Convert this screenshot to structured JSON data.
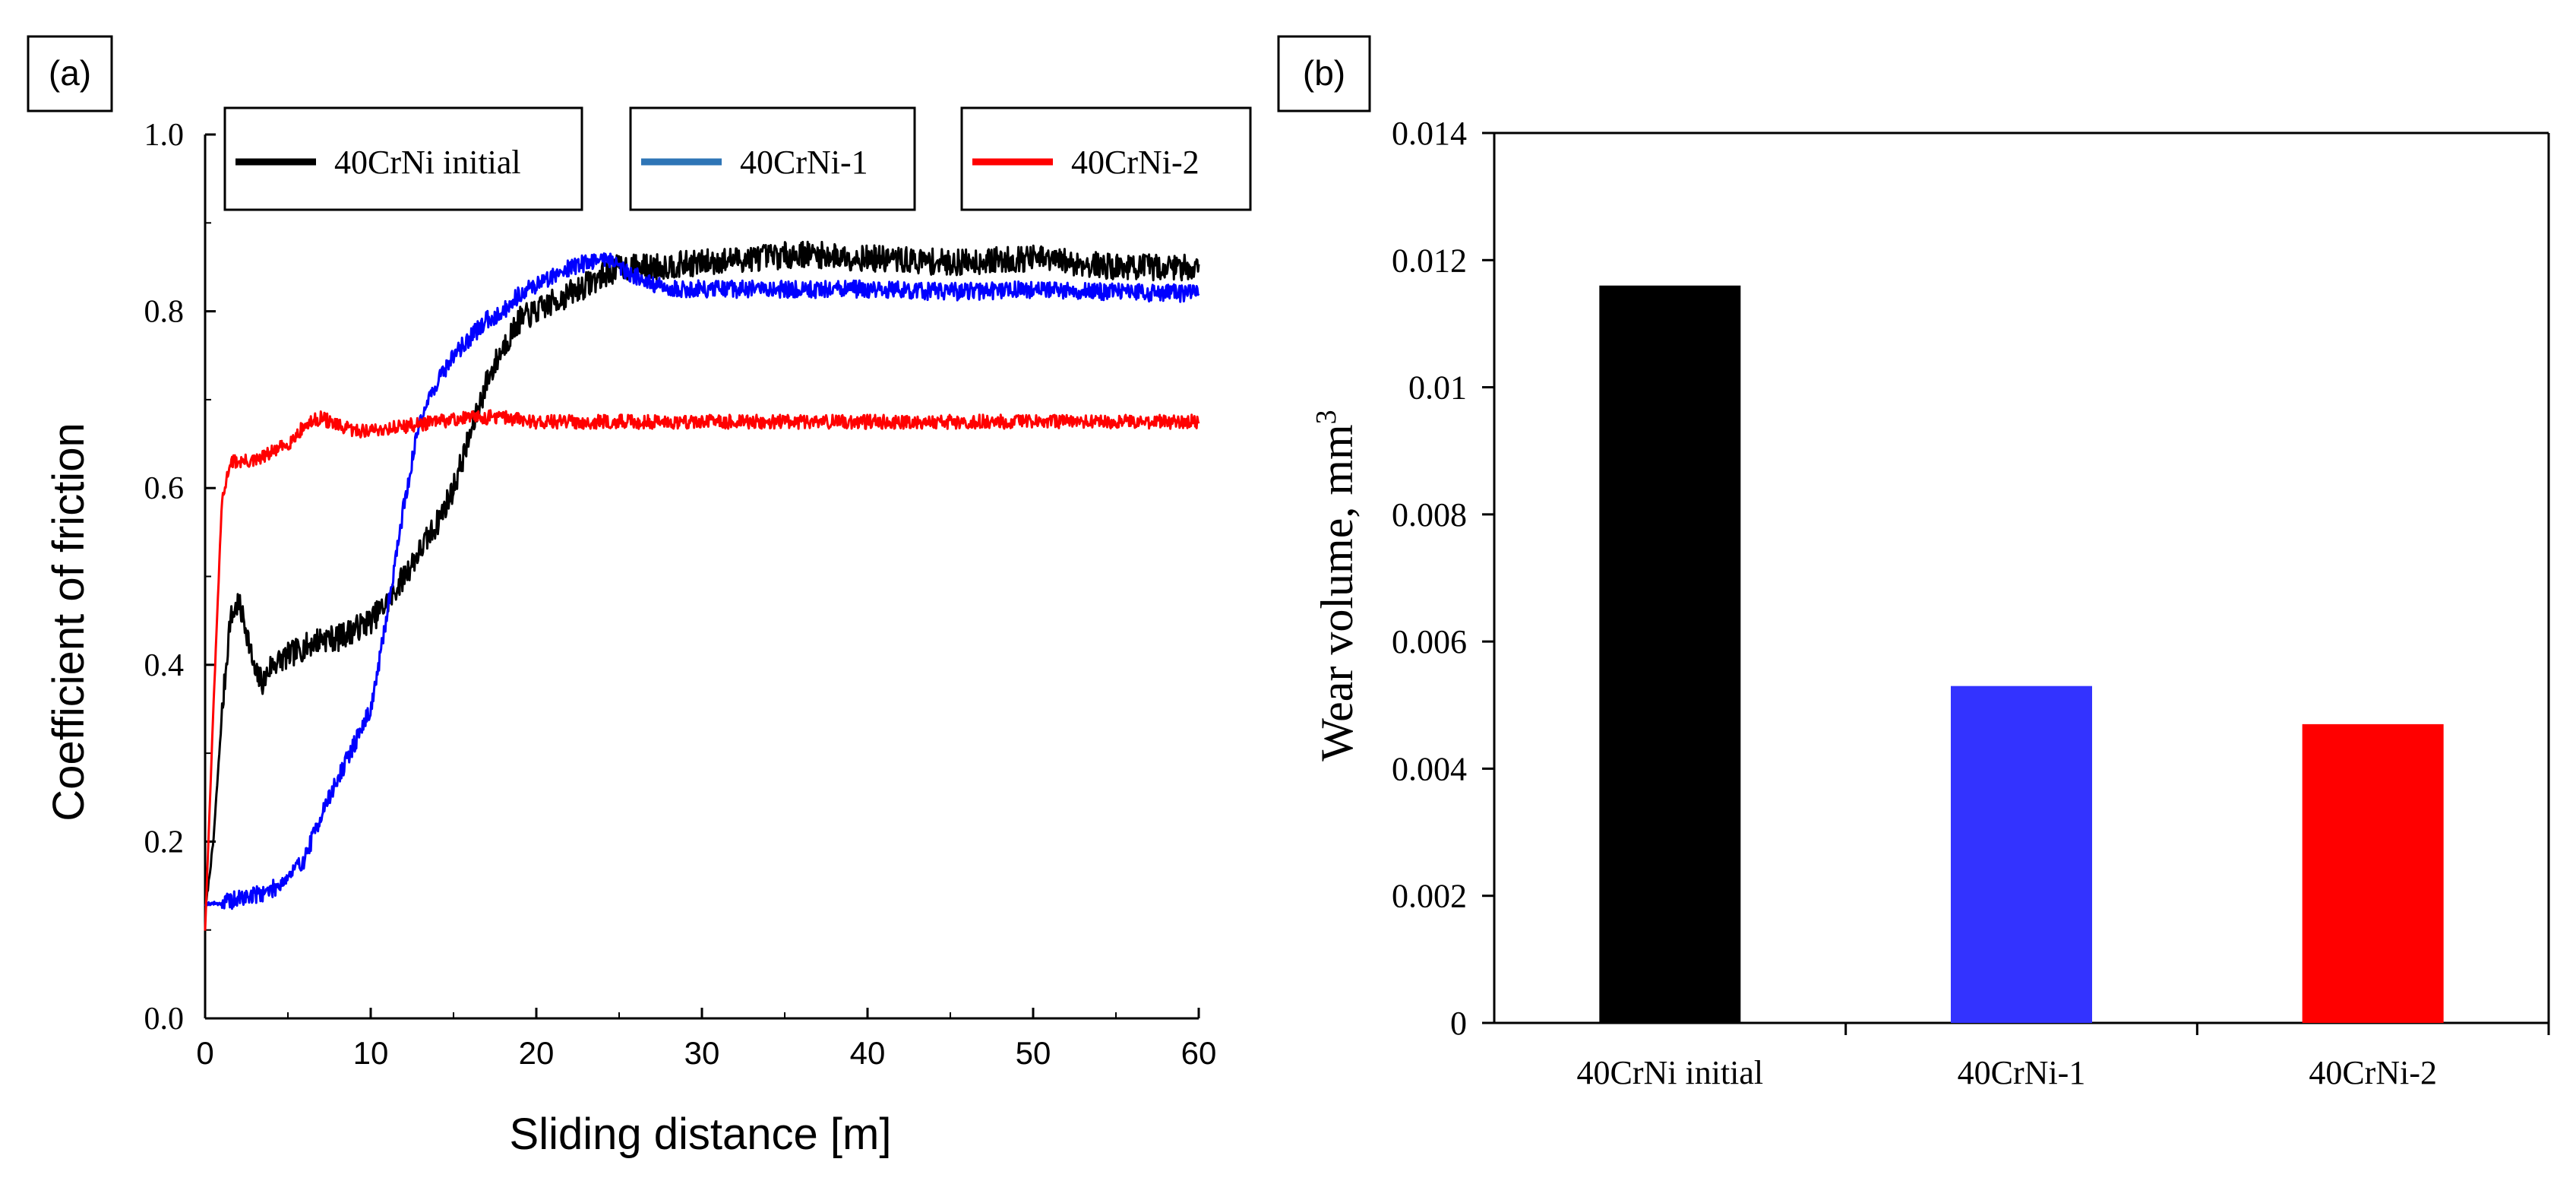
{
  "panels": {
    "a_label": "(a)",
    "b_label": "(b)"
  },
  "chart_data": [
    {
      "type": "line",
      "panel": "(a)",
      "title": "",
      "xlabel": "Sliding distance [m]",
      "ylabel": "Coefficient of friction",
      "xlim": [
        0,
        60
      ],
      "ylim": [
        0,
        1.0
      ],
      "xticks": [
        0,
        10,
        20,
        30,
        40,
        50,
        60
      ],
      "yticks": [
        0.0,
        0.2,
        0.4,
        0.6,
        0.8,
        1.0
      ],
      "ytick_labels": [
        "0.0",
        "0.2",
        "0.4",
        "0.6",
        "0.8",
        "1.0"
      ],
      "legend_position": "top",
      "series": [
        {
          "name": "40CrNi initial",
          "color": "#000000",
          "x": [
            0,
            0.5,
            1,
            1.5,
            2,
            2.5,
            3,
            3.5,
            4,
            5,
            6,
            7,
            8,
            9,
            10,
            11,
            12,
            13,
            14,
            15,
            16,
            17,
            18,
            19,
            20,
            21,
            22,
            23,
            24,
            25,
            27,
            30,
            33,
            36,
            40,
            45,
            50,
            55,
            60
          ],
          "y": [
            0.12,
            0.2,
            0.34,
            0.45,
            0.47,
            0.44,
            0.39,
            0.38,
            0.4,
            0.41,
            0.42,
            0.43,
            0.43,
            0.44,
            0.45,
            0.47,
            0.5,
            0.53,
            0.56,
            0.6,
            0.66,
            0.72,
            0.76,
            0.79,
            0.8,
            0.81,
            0.82,
            0.83,
            0.84,
            0.85,
            0.85,
            0.855,
            0.86,
            0.865,
            0.86,
            0.855,
            0.86,
            0.85,
            0.85
          ],
          "noise": 0.015
        },
        {
          "name": "40CrNi-1",
          "color": "#0000ff",
          "legend_color": "#2e75b6",
          "x": [
            0,
            1,
            2,
            3,
            4,
            5,
            6,
            7,
            8,
            9,
            10,
            10.5,
            11,
            11.5,
            12,
            12.5,
            13,
            14,
            15,
            16,
            17,
            18,
            19,
            20,
            21,
            22,
            23,
            24,
            24.5,
            25,
            26,
            27,
            28,
            30,
            35,
            40,
            45,
            50,
            55,
            60
          ],
          "y": [
            0.13,
            0.13,
            0.135,
            0.14,
            0.145,
            0.16,
            0.18,
            0.23,
            0.27,
            0.31,
            0.35,
            0.4,
            0.46,
            0.52,
            0.58,
            0.63,
            0.68,
            0.72,
            0.75,
            0.77,
            0.79,
            0.8,
            0.82,
            0.83,
            0.84,
            0.85,
            0.855,
            0.86,
            0.86,
            0.85,
            0.84,
            0.83,
            0.825,
            0.825,
            0.825,
            0.825,
            0.822,
            0.825,
            0.822,
            0.82
          ],
          "noise": 0.01
        },
        {
          "name": "40CrNi-2",
          "color": "#ff0000",
          "x": [
            0,
            0.5,
            1,
            1.5,
            2,
            3,
            4,
            5,
            6,
            7,
            8,
            9,
            10,
            12,
            14,
            16,
            18,
            20,
            25,
            30,
            40,
            50,
            60
          ],
          "y": [
            0.1,
            0.35,
            0.58,
            0.63,
            0.63,
            0.63,
            0.64,
            0.65,
            0.67,
            0.68,
            0.67,
            0.665,
            0.665,
            0.67,
            0.675,
            0.68,
            0.68,
            0.675,
            0.675,
            0.675,
            0.675,
            0.675,
            0.675
          ],
          "noise": 0.008
        }
      ]
    },
    {
      "type": "bar",
      "panel": "(b)",
      "title": "",
      "xlabel": "",
      "ylabel": "Wear volume, mm",
      "ylabel_superscript": "3",
      "ylim": [
        0,
        0.014
      ],
      "yticks": [
        0,
        0.002,
        0.004,
        0.006,
        0.008,
        0.01,
        0.012,
        0.014
      ],
      "ytick_labels": [
        "0",
        "0.002",
        "0.004",
        "0.006",
        "0.008",
        "0.01",
        "0.012",
        "0.014"
      ],
      "categories": [
        "40CrNi initial",
        "40CrNi-1",
        "40CrNi-2"
      ],
      "values": [
        0.0116,
        0.0053,
        0.0047
      ],
      "colors": [
        "#000000",
        "#3333ff",
        "#ff0000"
      ]
    }
  ]
}
